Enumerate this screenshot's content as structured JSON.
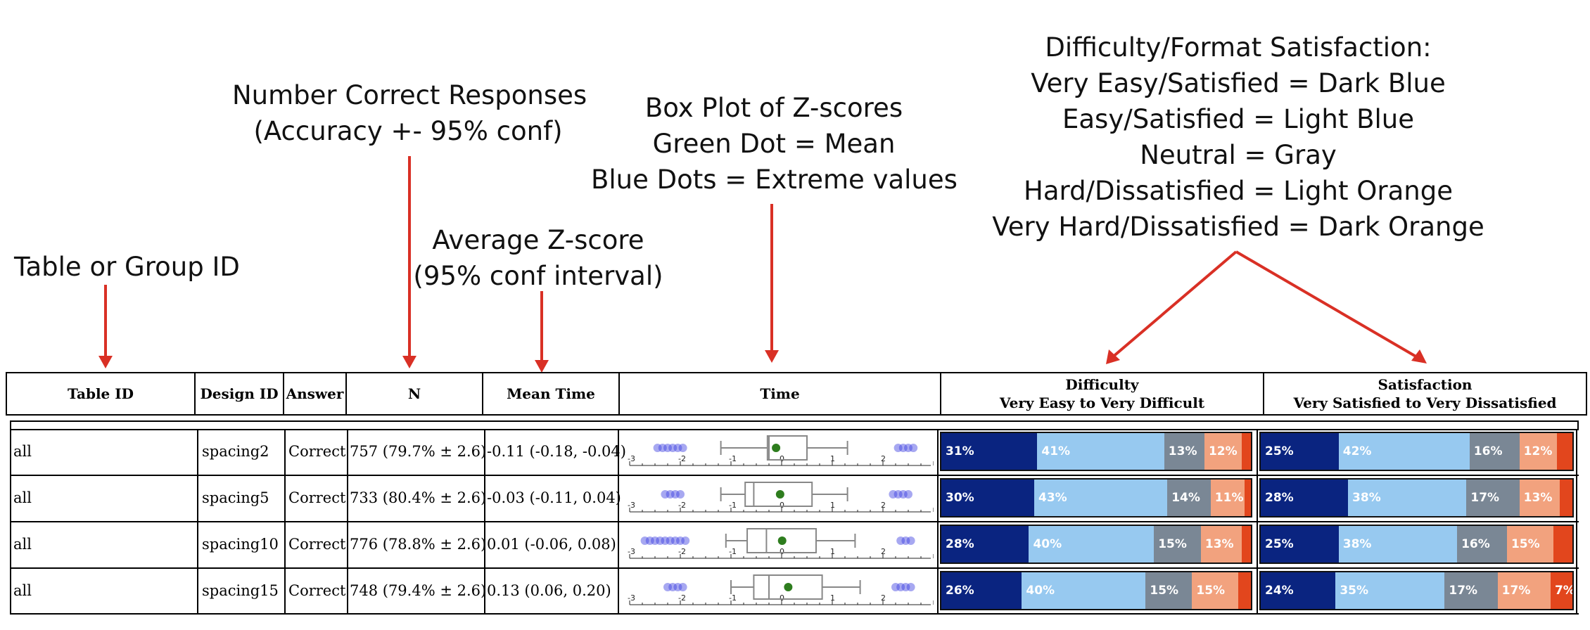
{
  "annotations": {
    "table_id": [
      "Table or Group ID"
    ],
    "n_correct": [
      "Number Correct Responses",
      "(Accuracy +- 95% conf)"
    ],
    "avg_z": [
      "Average Z-score",
      "(95% conf interval)"
    ],
    "box_plot": [
      "Box Plot of Z-scores",
      "Green Dot = Mean",
      "Blue Dots = Extreme values"
    ],
    "legend": [
      "Difficulty/Format Satisfaction:",
      "Very Easy/Satisfied = Dark Blue",
      "Easy/Satisfied = Light Blue",
      "Neutral = Gray",
      "Hard/Dissatisfied = Light Orange",
      "Very Hard/Dissatisfied = Dark Orange"
    ]
  },
  "headers": {
    "table_id": "Table ID",
    "design_id": "Design ID",
    "answer": "Answer",
    "n": "N",
    "mean_time": "Mean Time",
    "time": "Time",
    "difficulty_title": "Difficulty",
    "difficulty_sub": "Very Easy to Very Difficult",
    "satisfaction_title": "Satisfaction",
    "satisfaction_sub": "Very Satisfied to Very Dissatisfied"
  },
  "rows": [
    {
      "table_id": "all",
      "design_id": "spacing2",
      "answer": "Correct",
      "n": "757 (79.7% ± 2.6)",
      "mean_time": "-0.11 (-0.18, -0.04)"
    },
    {
      "table_id": "all",
      "design_id": "spacing5",
      "answer": "Correct",
      "n": "733 (80.4% ± 2.6)",
      "mean_time": "-0.03 (-0.11, 0.04)"
    },
    {
      "table_id": "all",
      "design_id": "spacing10",
      "answer": "Correct",
      "n": "776 (78.8% ± 2.6)",
      "mean_time": "0.01 (-0.06, 0.08)"
    },
    {
      "table_id": "all",
      "design_id": "spacing15",
      "answer": "Correct",
      "n": "748 (79.4% ± 2.6)",
      "mean_time": "0.13 (0.06, 0.20)"
    }
  ],
  "colors": {
    "very_easy": "#0a2480",
    "easy": "#97c9f0",
    "neutral": "#7a8795",
    "hard": "#f2a27e",
    "very_hard": "#e2461d",
    "mean_dot": "#2e7d1e",
    "extreme_dot": "#3b3fe0",
    "arrow": "#d93025"
  },
  "chart_data": {
    "type": "table",
    "axis_ticks": [
      "-3",
      "-2",
      "-1",
      "0",
      "1",
      "2"
    ],
    "axis_range": [
      -3,
      3
    ],
    "boxplots": [
      {
        "design": "spacing2",
        "mean": -0.11,
        "q1": -0.28,
        "median": -0.25,
        "q3": 0.5,
        "whisker_low": -1.2,
        "whisker_high": 1.3,
        "extremes_low": [
          -2.45,
          -2.35,
          -2.25,
          -2.15,
          -2.05,
          -1.95
        ],
        "extremes_high": [
          2.3,
          2.4,
          2.5,
          2.6
        ]
      },
      {
        "design": "spacing5",
        "mean": -0.03,
        "q1": -0.72,
        "median": -0.55,
        "q3": 0.6,
        "whisker_low": -1.2,
        "whisker_high": 1.3,
        "extremes_low": [
          -2.3,
          -2.2,
          -2.1,
          -2.0
        ],
        "extremes_high": [
          2.2,
          2.3,
          2.4,
          2.5
        ]
      },
      {
        "design": "spacing10",
        "mean": 0.01,
        "q1": -0.68,
        "median": -0.3,
        "q3": 0.68,
        "whisker_low": -1.1,
        "whisker_high": 1.45,
        "extremes_low": [
          -2.7,
          -2.6,
          -2.5,
          -2.4,
          -2.3,
          -2.2,
          -2.1,
          -2.0,
          -1.9
        ],
        "extremes_high": [
          2.35,
          2.45,
          2.55
        ]
      },
      {
        "design": "spacing15",
        "mean": 0.13,
        "q1": -0.55,
        "median": -0.25,
        "q3": 0.8,
        "whisker_low": -1.0,
        "whisker_high": 1.55,
        "extremes_low": [
          -2.25,
          -2.15,
          -2.05,
          -1.95
        ],
        "extremes_high": [
          2.25,
          2.35,
          2.45,
          2.55
        ]
      }
    ],
    "difficulty": [
      {
        "design": "spacing2",
        "values": [
          31,
          41,
          13,
          12,
          3
        ],
        "labels": [
          "31%",
          "41%",
          "13%",
          "12%",
          ""
        ]
      },
      {
        "design": "spacing5",
        "values": [
          30,
          43,
          14,
          11,
          2
        ],
        "labels": [
          "30%",
          "43%",
          "14%",
          "11%",
          ""
        ]
      },
      {
        "design": "spacing10",
        "values": [
          28,
          40,
          15,
          13,
          3
        ],
        "labels": [
          "28%",
          "40%",
          "15%",
          "13%",
          ""
        ]
      },
      {
        "design": "spacing15",
        "values": [
          26,
          40,
          15,
          15,
          4
        ],
        "labels": [
          "26%",
          "40%",
          "15%",
          "15%",
          ""
        ]
      }
    ],
    "satisfaction": [
      {
        "design": "spacing2",
        "values": [
          25,
          42,
          16,
          12,
          5
        ],
        "labels": [
          "25%",
          "42%",
          "16%",
          "12%",
          ""
        ]
      },
      {
        "design": "spacing5",
        "values": [
          28,
          38,
          17,
          13,
          4
        ],
        "labels": [
          "28%",
          "38%",
          "17%",
          "13%",
          ""
        ]
      },
      {
        "design": "spacing10",
        "values": [
          25,
          38,
          16,
          15,
          6
        ],
        "labels": [
          "25%",
          "38%",
          "16%",
          "15%",
          ""
        ]
      },
      {
        "design": "spacing15",
        "values": [
          24,
          35,
          17,
          17,
          7
        ],
        "labels": [
          "24%",
          "35%",
          "17%",
          "17%",
          "7%"
        ]
      }
    ]
  }
}
